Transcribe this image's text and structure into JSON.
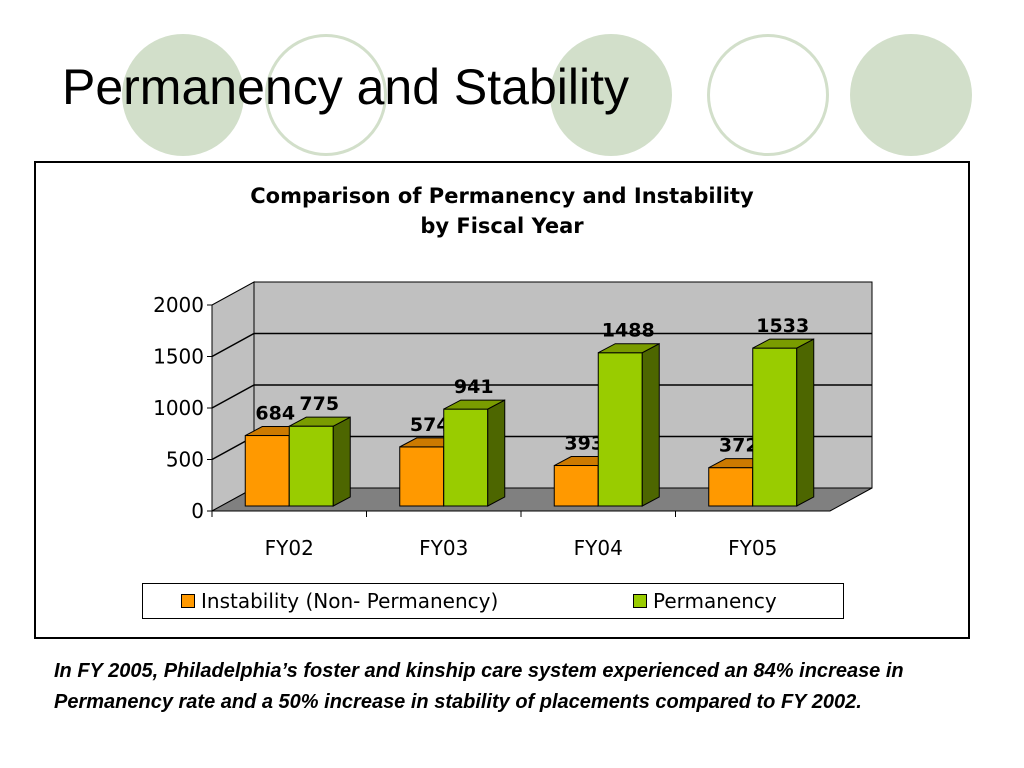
{
  "slide": {
    "title": "Permanency and Stability",
    "summary": "In FY 2005, Philadelphia’s foster and kinship care system experienced an 84% increase in Permanency rate and a 50% increase in stability of placements compared to FY 2002."
  },
  "chart_data": {
    "type": "bar",
    "title_lines": [
      "Comparison of Permanency and Instability",
      "by Fiscal Year"
    ],
    "categories": [
      "FY02",
      "FY03",
      "FY04",
      "FY05"
    ],
    "series": [
      {
        "name": "Instability (Non- Permanency)",
        "values": [
          684,
          574,
          393,
          372
        ],
        "color": "#ff9900",
        "side_color": "#b36b00",
        "top_color": "#cc7a00"
      },
      {
        "name": "Permanency",
        "values": [
          775,
          941,
          1488,
          1533
        ],
        "color": "#99cc00",
        "side_color": "#4d6600",
        "top_color": "#7a9c00"
      }
    ],
    "yticks": [
      0,
      500,
      1000,
      1500,
      2000
    ],
    "ylim": [
      0,
      2000
    ],
    "grid": true,
    "legend_position": "bottom",
    "data_labels": true,
    "wall_color": "#c0c0c0",
    "floor_color": "#808080"
  },
  "colors": {
    "decor_circle": "#d2dfca"
  }
}
